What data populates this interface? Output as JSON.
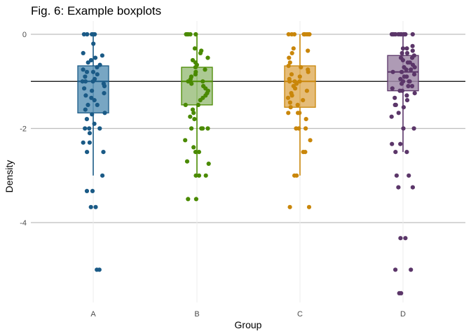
{
  "chart_data": {
    "type": "boxplot",
    "title": "Fig. 6: Example boxplots",
    "xlabel": "Group",
    "ylabel": "Density",
    "categories": [
      "A",
      "B",
      "C",
      "D"
    ],
    "ylim": [
      -5.6,
      0.05
    ],
    "yticks": [
      0,
      -2,
      -4
    ],
    "ytick_labels": [
      "0",
      "-2",
      "-4"
    ],
    "grid": "horizontal-major",
    "reference_line": {
      "y": -1.0,
      "color": "#000000"
    },
    "colors": [
      "#1a5a86",
      "#4a8a00",
      "#c9860a",
      "#5b3669"
    ],
    "box_fills": [
      "#6096b8",
      "#9ebf80",
      "#e0b060",
      "#a08aa8"
    ],
    "series": [
      {
        "category": "A",
        "box": {
          "q1": -1.67,
          "median": -1.0,
          "q3": -0.67,
          "whisker_low": -3.0,
          "whisker_high": 0.0
        },
        "points": [
          0,
          0,
          0,
          0,
          0,
          -0.2,
          -0.4,
          -0.45,
          -0.5,
          -0.55,
          -0.6,
          -0.65,
          -0.7,
          -0.75,
          -0.8,
          -0.8,
          -0.85,
          -0.9,
          -0.95,
          -1.0,
          -1.0,
          -1.0,
          -1.05,
          -1.1,
          -1.15,
          -1.2,
          -1.25,
          -1.3,
          -1.35,
          -1.4,
          -1.5,
          -1.5,
          -1.6,
          -1.67,
          -1.7,
          -1.8,
          -1.9,
          -2.0,
          -2.0,
          -2.0,
          -2.1,
          -2.3,
          -2.3,
          -2.5,
          -2.5,
          -3.0,
          -3.33,
          -3.33,
          -3.67,
          -3.67,
          -5.0,
          -5.0
        ]
      },
      {
        "category": "B",
        "box": {
          "q1": -1.5,
          "median": -1.0,
          "q3": -0.7,
          "whisker_low": -3.0,
          "whisker_high": 0.0
        },
        "points": [
          0,
          0,
          0,
          0,
          0,
          -0.3,
          -0.35,
          -0.4,
          -0.5,
          -0.55,
          -0.6,
          -0.65,
          -0.7,
          -0.75,
          -0.8,
          -0.85,
          -0.9,
          -0.95,
          -1.0,
          -1.0,
          -1.05,
          -1.1,
          -1.15,
          -1.2,
          -1.25,
          -1.3,
          -1.35,
          -1.4,
          -1.5,
          -1.5,
          -1.6,
          -1.67,
          -1.75,
          -1.8,
          -2.0,
          -2.0,
          -2.0,
          -2.0,
          -2.25,
          -2.4,
          -2.5,
          -2.5,
          -2.7,
          -2.75,
          -3.0,
          -3.0,
          -3.0,
          -3.5,
          -3.5
        ]
      },
      {
        "category": "C",
        "box": {
          "q1": -1.55,
          "median": -1.0,
          "q3": -0.67,
          "whisker_low": -3.0,
          "whisker_high": 0.0
        },
        "points": [
          0,
          0,
          0,
          0,
          0,
          0,
          0,
          0,
          0,
          -0.3,
          -0.35,
          -0.4,
          -0.5,
          -0.6,
          -0.67,
          -0.7,
          -0.75,
          -0.8,
          -0.85,
          -0.9,
          -0.95,
          -1.0,
          -1.0,
          -1.0,
          -1.05,
          -1.1,
          -1.15,
          -1.2,
          -1.25,
          -1.3,
          -1.35,
          -1.4,
          -1.45,
          -1.5,
          -1.55,
          -1.67,
          -1.67,
          -1.67,
          -1.8,
          -2.0,
          -2.0,
          -2.0,
          -2.25,
          -2.5,
          -2.5,
          -3.0,
          -3.0,
          -3.67,
          -3.67
        ]
      },
      {
        "category": "D",
        "box": {
          "q1": -1.2,
          "median": -0.8,
          "q3": -0.45,
          "whisker_low": -2.5,
          "whisker_high": 0.0
        },
        "points": [
          0,
          0,
          0,
          0,
          0,
          0,
          0,
          0,
          0,
          0,
          0,
          0,
          0,
          -0.25,
          -0.3,
          -0.3,
          -0.35,
          -0.4,
          -0.4,
          -0.45,
          -0.5,
          -0.5,
          -0.55,
          -0.6,
          -0.6,
          -0.65,
          -0.7,
          -0.7,
          -0.75,
          -0.75,
          -0.8,
          -0.8,
          -0.85,
          -0.9,
          -0.9,
          -0.95,
          -1.0,
          -1.0,
          -1.0,
          -1.05,
          -1.1,
          -1.1,
          -1.15,
          -1.2,
          -1.2,
          -1.25,
          -1.3,
          -1.35,
          -1.4,
          -1.5,
          -1.5,
          -1.55,
          -1.67,
          -1.75,
          -2.0,
          -2.0,
          -2.33,
          -2.33,
          -2.5,
          -2.5,
          -3.0,
          -3.0,
          -3.25,
          -3.25,
          -4.33,
          -4.33,
          -5.0,
          -5.0,
          -5.5,
          -5.5
        ]
      }
    ]
  }
}
